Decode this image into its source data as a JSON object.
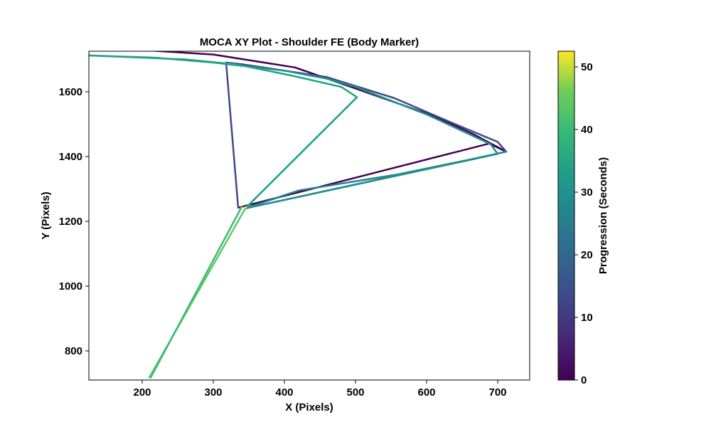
{
  "chart_data": {
    "type": "line",
    "title": "MOCA XY Plot - Shoulder FE (Body Marker)",
    "xlabel": "X (Pixels)",
    "ylabel": "Y (Pixels)",
    "xlim": [
      125,
      745
    ],
    "ylim": [
      710,
      1725
    ],
    "xticks": [
      200,
      300,
      400,
      500,
      600,
      700
    ],
    "yticks": [
      800,
      1000,
      1200,
      1400,
      1600
    ],
    "grid": false,
    "colorbar": {
      "label": "Progression (Seconds)",
      "range": [
        0,
        52.5
      ],
      "ticks": [
        0,
        10,
        20,
        30,
        40,
        50
      ],
      "colormap": "viridis"
    },
    "series": [
      {
        "color": "#440154",
        "points": [
          [
            190,
            1730
          ],
          [
            300,
            1715
          ],
          [
            415,
            1675
          ],
          [
            500,
            1610
          ],
          [
            610,
            1525
          ],
          [
            665,
            1470
          ],
          [
            712,
            1415
          ],
          [
            688,
            1440
          ],
          [
            335,
            1242
          ]
        ]
      },
      {
        "color": "#3e4a89",
        "points": [
          [
            335,
            1242
          ],
          [
            318,
            1690
          ],
          [
            340,
            1685
          ],
          [
            460,
            1645
          ],
          [
            555,
            1580
          ],
          [
            640,
            1500
          ],
          [
            700,
            1445
          ],
          [
            712,
            1415
          ]
        ]
      },
      {
        "color": "#26828e",
        "points": [
          [
            712,
            1415
          ],
          [
            345,
            1240
          ],
          [
            420,
            1295
          ],
          [
            560,
            1345
          ],
          [
            692,
            1405
          ]
        ]
      },
      {
        "color": "#21918c",
        "points": [
          [
            125,
            1712
          ],
          [
            220,
            1705
          ],
          [
            300,
            1690
          ],
          [
            400,
            1665
          ],
          [
            460,
            1640
          ],
          [
            500,
            1615
          ],
          [
            600,
            1530
          ],
          [
            690,
            1438
          ],
          [
            700,
            1408
          ],
          [
            345,
            1240
          ],
          [
            502,
            1583
          ]
        ]
      },
      {
        "color": "#21a585",
        "points": [
          [
            125,
            1712
          ],
          [
            260,
            1700
          ],
          [
            330,
            1685
          ],
          [
            410,
            1650
          ],
          [
            480,
            1615
          ],
          [
            502,
            1583
          ],
          [
            345,
            1240
          ]
        ]
      },
      {
        "color": "#5ec962",
        "points": [
          [
            345,
            1240
          ],
          [
            210,
            718
          ]
        ]
      },
      {
        "color": "#3bbb75",
        "points": [
          [
            212,
            718
          ],
          [
            340,
            1245
          ]
        ]
      },
      {
        "color": "#fde725",
        "points": [
          [
            345,
            1243
          ],
          [
            346,
            1244
          ]
        ]
      }
    ]
  }
}
